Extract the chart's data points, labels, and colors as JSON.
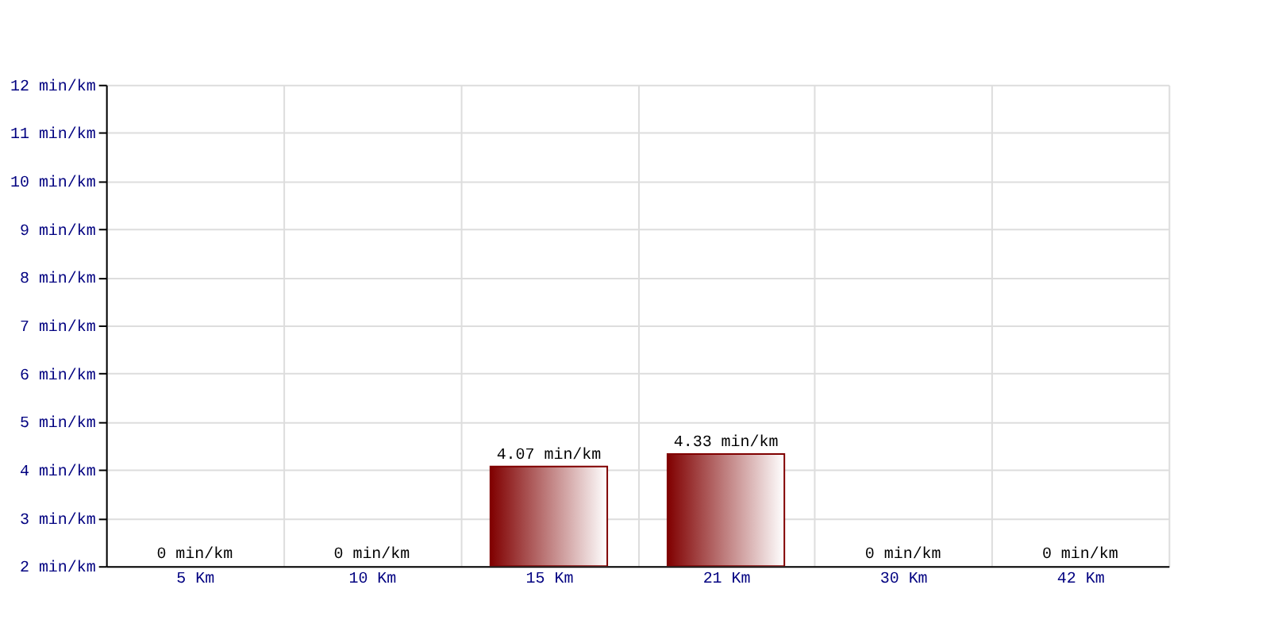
{
  "chart_data": {
    "type": "bar",
    "categories": [
      "5 Km",
      "10 Km",
      "15 Km",
      "21 Km",
      "30 Km",
      "42 Km"
    ],
    "values": [
      null,
      null,
      4.07,
      4.33,
      null,
      null
    ],
    "value_labels": [
      "0 min/km",
      "0 min/km",
      "4.07 min/km",
      "4.33 min/km",
      "0 min/km",
      "0 min/km"
    ],
    "color": "#800000",
    "ylim": [
      2,
      12
    ],
    "yticks": [
      {
        "value": 2,
        "label": "2 min/km"
      },
      {
        "value": 3,
        "label": "3 min/km"
      },
      {
        "value": 4,
        "label": "4 min/km"
      },
      {
        "value": 5,
        "label": "5 min/km"
      },
      {
        "value": 6,
        "label": "6 min/km"
      },
      {
        "value": 7,
        "label": "7 min/km"
      },
      {
        "value": 8,
        "label": "8 min/km"
      },
      {
        "value": 9,
        "label": "9 min/km"
      },
      {
        "value": 10,
        "label": "10 min/km"
      },
      {
        "value": 11,
        "label": "11 min/km"
      },
      {
        "value": 12,
        "label": "12 min/km"
      }
    ],
    "grid": true
  }
}
